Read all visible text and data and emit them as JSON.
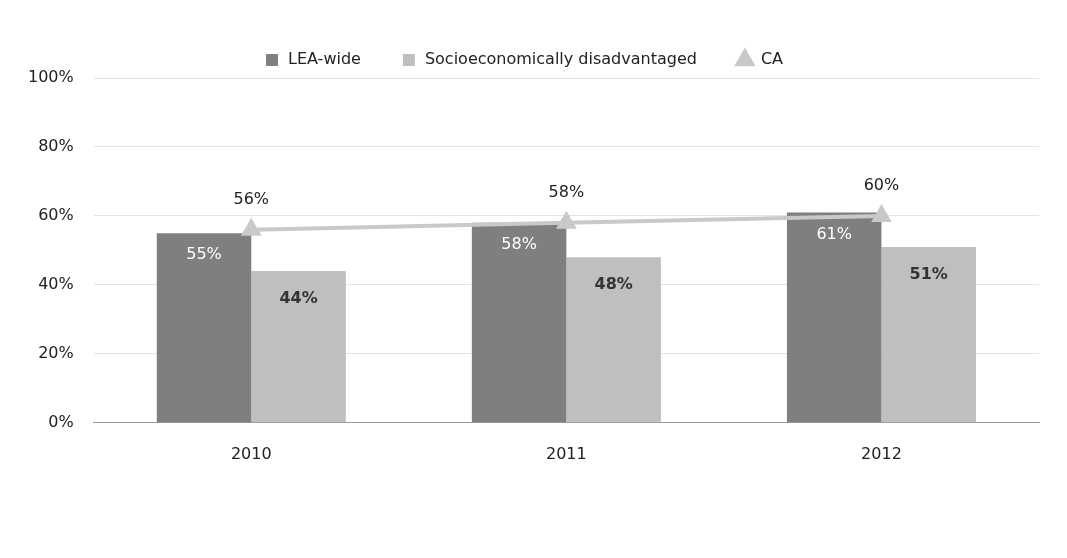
{
  "chart_data": {
    "type": "bar",
    "categories": [
      "2010",
      "2011",
      "2012"
    ],
    "series": [
      {
        "name": "LEA-wide",
        "color": "#7f7f7f",
        "values": [
          55,
          58,
          61
        ],
        "value_labels": [
          "55%",
          "58%",
          "61%"
        ]
      },
      {
        "name": "Socioeconomically disadvantaged",
        "color": "#bfbfbf",
        "values": [
          44,
          48,
          51
        ],
        "value_labels": [
          "44%",
          "48%",
          "51%"
        ]
      },
      {
        "name": "CA",
        "type": "line",
        "color": "#c9c9c9",
        "marker": "triangle",
        "values": [
          56,
          58,
          60
        ],
        "value_labels": [
          "56%",
          "58%",
          "60%"
        ]
      }
    ],
    "ylim": [
      0,
      100
    ],
    "yticks": [
      {
        "value": 0,
        "label": "0%"
      },
      {
        "value": 20,
        "label": "20%"
      },
      {
        "value": 40,
        "label": "40%"
      },
      {
        "value": 60,
        "label": "60%"
      },
      {
        "value": 80,
        "label": "80%"
      },
      {
        "value": 100,
        "label": "100%"
      }
    ],
    "grid": "y",
    "legend": "top"
  }
}
